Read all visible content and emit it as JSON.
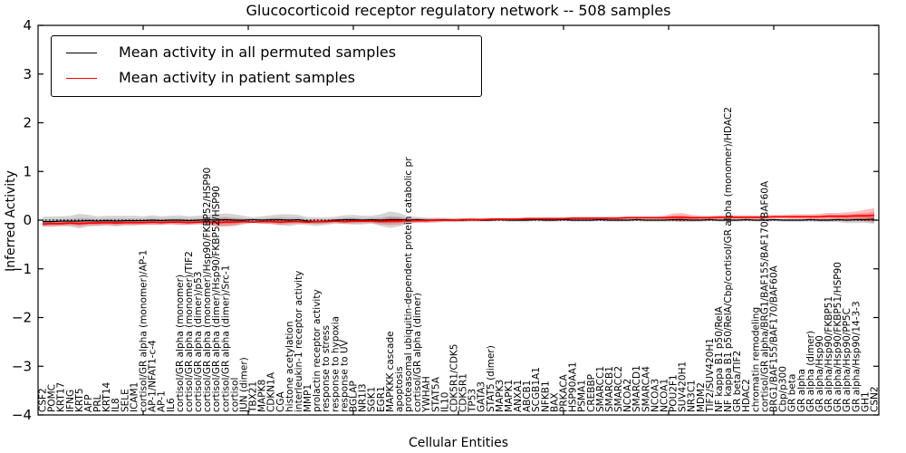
{
  "figure": {
    "title": "Glucocorticoid receptor regulatory network -- 508 samples",
    "xlabel": "Cellular Entities",
    "ylabel": "Inferred Activity"
  },
  "legend": {
    "entries": [
      {
        "label": "Mean activity in all permuted samples",
        "color": "#000000"
      },
      {
        "label": "Mean activity in patient samples",
        "color": "#ff0000"
      }
    ]
  },
  "chart_data": {
    "type": "line",
    "title": "Glucocorticoid receptor regulatory network -- 508 samples",
    "xlabel": "Cellular Entities",
    "ylabel": "Inferred Activity",
    "ylim": [
      -4,
      4
    ],
    "yticks": [
      -4,
      -3,
      -2,
      -1,
      0,
      1,
      2,
      3,
      4
    ],
    "grid": false,
    "legend_position": "upper left",
    "zero_line": {
      "style": "dotted",
      "color": "#000000",
      "y": 0
    },
    "x_labels": [
      "CSF2",
      "POMC",
      "KRT17",
      "IFNG",
      "KRT5",
      "AFP",
      "PRL",
      "KRT14",
      "IL8",
      "SELE",
      "ICAM1",
      "cortisol/GR alpha (monomer)/AP-1",
      "AP-1/NFAT1-c-4",
      "AP-1",
      "IL6",
      "cortisol/GR alpha (monomer)",
      "cortisol/GR alpha (monomer)/TIF2",
      "cortisol/GR alpha (dimer)/p53",
      "cortisol/GR alpha (monomer)/Hsp90/FKBP52/HSP90",
      "cortisol/GR alpha (dimer)/Hsp90/FKBP52/HSP90",
      "cortisol/GR alpha (dimer)/Src-1",
      "cortisol",
      "JUN (dimer)",
      "TBX21",
      "MAPK8",
      "CDKN1A",
      "CGA",
      "histone acetylation",
      "interleukin-1 receptor activity",
      "MMP1",
      "prolactin receptor activity",
      "response to stress",
      "response to hypoxia",
      "response to UV",
      "BGLAP",
      "NR1I3",
      "SGK1",
      "EGR1",
      "MAPKKK cascade",
      "apoptosis",
      "proteasomal ubiquitin-dependent protein catabolic pr",
      "cortisol/GR alpha (dimer)",
      "YWHAH",
      "STAT5A",
      "IL10",
      "CDK5R1/CDK5",
      "CDK5R1",
      "TP53",
      "GATA3",
      "STAT5 (dimer)",
      "MAPK3",
      "MAPK1",
      "ANXA1",
      "ABCB1",
      "SCGB1A1",
      "NFKB1",
      "BAX",
      "PRKACA",
      "HSP90AA1",
      "PSMA1",
      "CREBBP",
      "SMARCC1",
      "SMARCB1",
      "SMARCC2",
      "NCOA2",
      "SMARCD1",
      "SMARCA4",
      "NCOA3",
      "NCOA1",
      "POU2F1",
      "SUV420H1",
      "NR3C1",
      "MDM2",
      "TIF2/SUV420H1",
      "NF kappa B1 p50/RelA",
      "NF kappa B1 p50/RelA/Cbp/cortisol/GR alpha (monomer)/HDAC2",
      "GR beta/TIF2",
      "HDAC2",
      "chromatin remodeling",
      "cortisol/GR alpha/BRG1/BAF155/BAF170/BAF60A",
      "BRG1/BAF155/BAF170/BAF60A",
      "Cbp/p300",
      "GR beta",
      "GR alpha",
      "GR alpha (dimer)",
      "GR alpha/Hsp90",
      "GR alpha/Hsp90/FKBP51",
      "GR alpha/Hsp90/FKBP51/HSP90",
      "GR alpha/Hsp90/PP5C",
      "GR alpha/Hsp90/14-3-3",
      "GH1",
      "CSN2"
    ],
    "series": [
      {
        "name": "Mean activity in all permuted samples",
        "color": "#000000",
        "values": [
          -0.03,
          -0.03,
          -0.02,
          -0.02,
          -0.02,
          -0.01,
          -0.02,
          -0.01,
          -0.02,
          -0.01,
          -0.01,
          -0.01,
          0.0,
          -0.01,
          0.0,
          0.0,
          -0.01,
          0.0,
          0.01,
          0.0,
          0.01,
          0.0,
          0.0,
          0.01,
          0.0,
          0.01,
          0.01,
          0.0,
          0.01,
          -0.02,
          -0.03,
          -0.02,
          0.0,
          0.01,
          0.01,
          0.0,
          0.01,
          0.0,
          0.01,
          0.01,
          0.0,
          0.01,
          0.0,
          0.0,
          0.01,
          0.0,
          0.0,
          0.01,
          0.0,
          0.0,
          0.01,
          0.0,
          0.0,
          0.0,
          0.01,
          0.0,
          0.0,
          0.01,
          0.0,
          0.0,
          0.0,
          0.01,
          0.0,
          0.0,
          0.0,
          0.01,
          0.0,
          0.0,
          0.0,
          0.01,
          0.01,
          0.0,
          0.0,
          0.01,
          0.0,
          0.0,
          0.0,
          0.01,
          0.0,
          0.0,
          0.01,
          0.0,
          0.0,
          0.0,
          0.01,
          0.0,
          0.0,
          0.01,
          0.0,
          0.01,
          0.01,
          0.02
        ]
      },
      {
        "name": "Mean activity in patient samples",
        "color": "#ff0000",
        "values": [
          -0.08,
          -0.07,
          -0.07,
          -0.06,
          -0.07,
          -0.06,
          -0.06,
          -0.05,
          -0.06,
          -0.05,
          -0.05,
          -0.05,
          -0.04,
          -0.05,
          -0.04,
          -0.04,
          -0.05,
          -0.04,
          -0.04,
          -0.05,
          -0.04,
          -0.04,
          -0.03,
          -0.04,
          -0.03,
          -0.03,
          -0.04,
          -0.03,
          -0.03,
          -0.04,
          -0.03,
          -0.03,
          -0.02,
          -0.03,
          -0.02,
          -0.02,
          -0.02,
          -0.03,
          -0.02,
          -0.02,
          -0.01,
          -0.01,
          -0.01,
          0.0,
          0.0,
          0.0,
          0.01,
          0.01,
          0.01,
          0.02,
          0.02,
          0.02,
          0.02,
          0.03,
          0.03,
          0.03,
          0.03,
          0.03,
          0.04,
          0.04,
          0.04,
          0.04,
          0.04,
          0.04,
          0.05,
          0.05,
          0.05,
          0.05,
          0.05,
          0.06,
          0.06,
          0.05,
          0.05,
          0.05,
          0.06,
          0.06,
          0.06,
          0.06,
          0.06,
          0.06,
          0.07,
          0.07,
          0.07,
          0.07,
          0.07,
          0.07,
          0.08,
          0.08,
          0.08,
          0.09,
          0.09,
          0.1
        ]
      }
    ],
    "bands": [
      {
        "name": "permuted samples range",
        "color": "#909090",
        "opacity": 0.38,
        "series": 0,
        "halfwidths": [
          0.1,
          0.11,
          0.1,
          0.11,
          0.15,
          0.12,
          0.1,
          0.1,
          0.11,
          0.1,
          0.1,
          0.09,
          0.1,
          0.09,
          0.09,
          0.1,
          0.09,
          0.09,
          0.1,
          0.12,
          0.13,
          0.12,
          0.09,
          0.05,
          0.08,
          0.09,
          0.11,
          0.12,
          0.1,
          0.08,
          0.09,
          0.08,
          0.07,
          0.09,
          0.1,
          0.09,
          0.08,
          0.12,
          0.17,
          0.14,
          0.08,
          0.06,
          0.05,
          0.05,
          0.04,
          0.04,
          0.04,
          0.04,
          0.03,
          0.03,
          0.03,
          0.03,
          0.03,
          0.03,
          0.03,
          0.03,
          0.03,
          0.03,
          0.03,
          0.03,
          0.03,
          0.03,
          0.03,
          0.03,
          0.03,
          0.03,
          0.03,
          0.03,
          0.03,
          0.04,
          0.05,
          0.04,
          0.03,
          0.03,
          0.03,
          0.03,
          0.03,
          0.03,
          0.03,
          0.03,
          0.03,
          0.03,
          0.03,
          0.03,
          0.04,
          0.04,
          0.04,
          0.05,
          0.06,
          0.07,
          0.06,
          0.1
        ]
      },
      {
        "name": "patient samples range",
        "color": "#ff2020",
        "opacity": 0.3,
        "series": 1,
        "halfwidths": [
          0.05,
          0.05,
          0.05,
          0.05,
          0.06,
          0.05,
          0.05,
          0.05,
          0.05,
          0.05,
          0.05,
          0.04,
          0.05,
          0.04,
          0.04,
          0.05,
          0.04,
          0.04,
          0.05,
          0.08,
          0.09,
          0.07,
          0.04,
          0.02,
          0.04,
          0.05,
          0.06,
          0.05,
          0.04,
          0.04,
          0.05,
          0.04,
          0.04,
          0.04,
          0.05,
          0.04,
          0.04,
          0.06,
          0.08,
          0.07,
          0.05,
          0.04,
          0.04,
          0.04,
          0.03,
          0.03,
          0.03,
          0.03,
          0.03,
          0.03,
          0.03,
          0.03,
          0.03,
          0.03,
          0.03,
          0.03,
          0.03,
          0.03,
          0.03,
          0.03,
          0.03,
          0.03,
          0.03,
          0.03,
          0.03,
          0.03,
          0.03,
          0.03,
          0.04,
          0.08,
          0.09,
          0.06,
          0.04,
          0.04,
          0.04,
          0.04,
          0.04,
          0.04,
          0.04,
          0.04,
          0.04,
          0.04,
          0.05,
          0.05,
          0.05,
          0.06,
          0.07,
          0.07,
          0.08,
          0.09,
          0.12,
          0.15
        ]
      }
    ]
  }
}
